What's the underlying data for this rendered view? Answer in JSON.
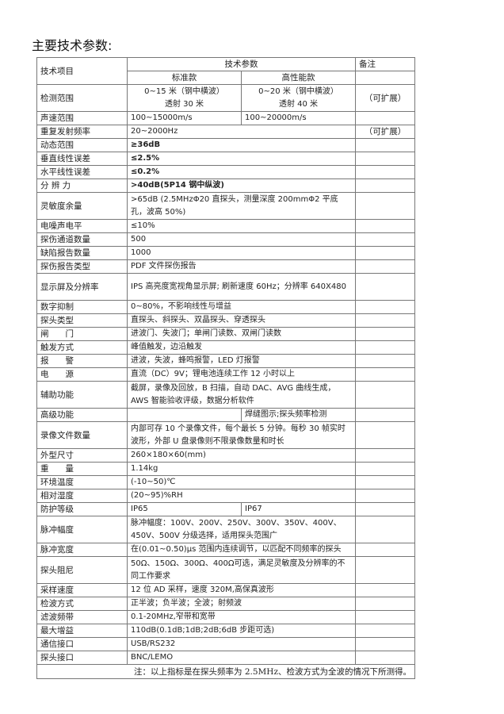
{
  "title": "主要技术参数:",
  "header": {
    "item": "技术项目",
    "params": "技术参数",
    "remarks": "备注",
    "standard": "标准款",
    "high": "高性能款"
  },
  "detection_range": {
    "label": "检测范围",
    "standard": [
      "0~15 米（钢中横波）",
      "透射 30 米"
    ],
    "high": [
      "0~20 米（钢中横波）",
      "透射 40 米"
    ],
    "remark": "（可扩展）"
  },
  "rows": [
    {
      "label": "声速范围",
      "standard": "100~15000m/s",
      "high": "100~20000m/s"
    },
    {
      "label": "重复发射频率",
      "value": "20~2000Hz",
      "remark": "（可扩展）"
    },
    {
      "label": "动态范围",
      "value": "≥36dB",
      "bold": true
    },
    {
      "label": "垂直线性误差",
      "value": "≤2.5%",
      "bold": true
    },
    {
      "label": "水平线性误差",
      "value": "≤0.2%",
      "bold": true
    },
    {
      "label": "分 辨 力",
      "value": ">40dB(5P14 钢中纵波)",
      "bold": true
    },
    {
      "label": "灵敏度余量",
      "value": ">65dB (2.5MHzΦ20 直探头，测量深度 200mmΦ2 平底孔，波高 50%)",
      "two": true
    },
    {
      "label": "电噪声电平",
      "value": "≤10%"
    },
    {
      "label": "探伤通道数量",
      "value": "500"
    },
    {
      "label": "缺陷报告数量",
      "value": "1000"
    },
    {
      "label": "探伤报告类型",
      "value": "PDF 文件探伤报告"
    },
    {
      "label": "显示屏及分辨率",
      "value": "IPS 高亮度宽视角显示屏; 刷新速度 60Hz；分辨率 640X480",
      "two": true
    },
    {
      "label": "数字抑制",
      "value": "0~80%，不影响线性与增益"
    },
    {
      "label": "探头类型",
      "value": "直探头、斜探头、双晶探头、穿透探头"
    },
    {
      "label": "闸　　门",
      "value": "进波门、失波门；单闸门读数、双闸门读数"
    },
    {
      "label": "触发方式",
      "value": "峰值触发，边沿触发"
    },
    {
      "label": "报　　警",
      "value": "进波，失波，蜂鸣报警，LED 灯报警"
    },
    {
      "label": "电　　源",
      "value": "直流（DC）9V；锂电池连续工作 12 小时以上"
    },
    {
      "label": "辅助功能",
      "value": "截屏，录像及回放，B 扫描，自动 DAC、AVG 曲线生成，AWS 智能验收评级，数据分析软件",
      "two": true
    },
    {
      "label": "高级功能",
      "standard": "",
      "high": "焊缝图示;探头频率检测"
    },
    {
      "label": "录像文件数量",
      "value": "内部可存 10 个录像文件，每个最长 5 分钟。每秒 30 帧实时波形，外部 U 盘录像则不限录像数量和时长",
      "two": true
    },
    {
      "label": "外型尺寸",
      "value": "260×180×60(mm)"
    },
    {
      "label": "重　　量",
      "value": "1.14kg"
    },
    {
      "label": "环境温度",
      "value": "(-10~50)℃"
    },
    {
      "label": "相对湿度",
      "value": "(20~95)%RH"
    },
    {
      "label": "防护等级",
      "standard": "IP65",
      "high": "IP67"
    },
    {
      "label": "脉冲幅度",
      "value": "脉冲幅度：100V、200V、250V、300V、350V、400V、450V、500V 分级选择，适用探头范围广",
      "two": true
    },
    {
      "label": "脉冲宽度",
      "value": "在(0.01~0.50)μs 范围内连续调节，以匹配不同频率的探头"
    },
    {
      "label": "探头阻尼",
      "value": "50Ω、150Ω、300Ω、400Ω可选，满足灵敏度及分辨率的不同工作要求",
      "two": true
    },
    {
      "label": "采样速度",
      "value": "12 位 AD 采样，速度 320M,高保真波形"
    },
    {
      "label": "检波方式",
      "value": "正半波；负半波；全波；射频波"
    },
    {
      "label": "滤波频带",
      "value": "0.1-20MHz,窄带和宽带"
    },
    {
      "label": "最大增益",
      "value": "110dB(0.1dB;1dB;2dB;6dB 步距可选)"
    },
    {
      "label": "通信接口",
      "value": "USB/RS232"
    },
    {
      "label": "探头接口",
      "value": "BNC/LEMO"
    }
  ],
  "note": "注：以上指标是在探头频率为 2.5MHz、检波方式为全波的情况下所测得。"
}
